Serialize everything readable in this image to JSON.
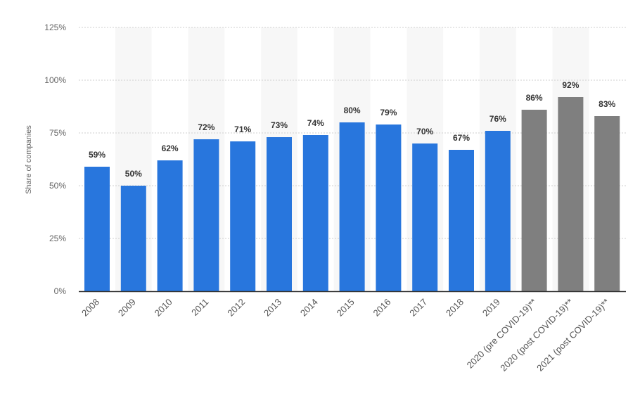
{
  "chart_data": {
    "type": "bar",
    "ylabel": "Share of companies",
    "ylim": [
      0,
      125
    ],
    "yticks": [
      0,
      25,
      50,
      75,
      100,
      125
    ],
    "ytick_labels": [
      "0%",
      "25%",
      "50%",
      "75%",
      "100%",
      "125%"
    ],
    "grid": true,
    "categories": [
      "2008",
      "2009",
      "2010",
      "2011",
      "2012",
      "2013",
      "2014",
      "2015",
      "2016",
      "2017",
      "2018",
      "2019",
      "2020 (pre COVID-19)**",
      "2020 (post COVID-19)**",
      "2021 (post COVID-19)**"
    ],
    "values": [
      59,
      50,
      62,
      72,
      71,
      73,
      74,
      80,
      79,
      70,
      67,
      76,
      86,
      92,
      83
    ],
    "value_labels": [
      "59%",
      "50%",
      "62%",
      "72%",
      "71%",
      "73%",
      "74%",
      "80%",
      "79%",
      "70%",
      "67%",
      "76%",
      "86%",
      "92%",
      "83%"
    ],
    "colors": {
      "actual": "#2876dd",
      "forecast": "#7f7f7f",
      "stripe": "#f7f7f7",
      "grid": "#cfcfcf",
      "axis": "#333333"
    },
    "forecast_from_index": 12
  }
}
